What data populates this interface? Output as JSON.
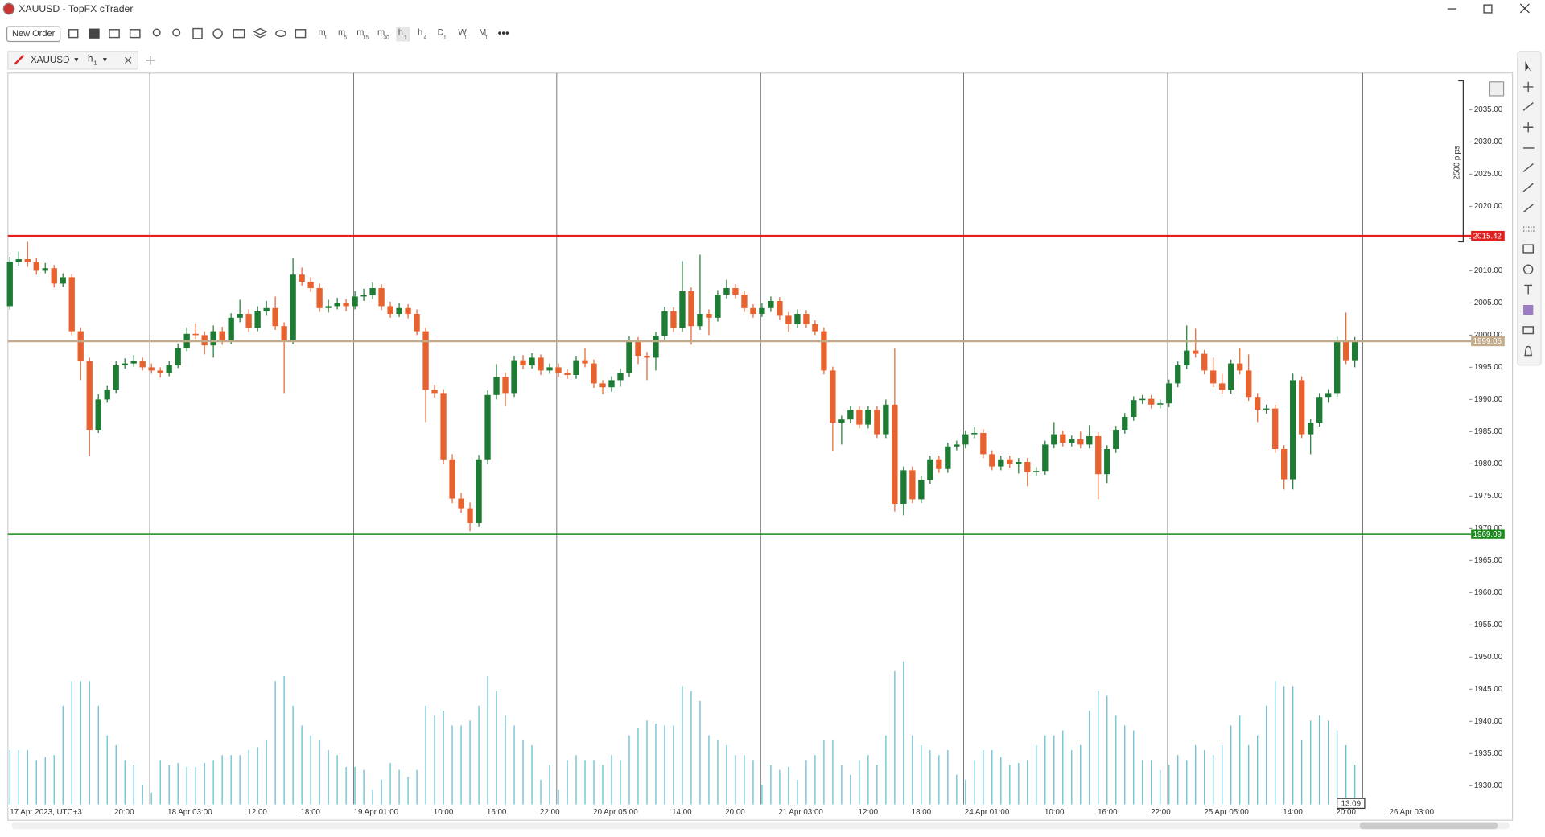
{
  "window": {
    "title": "XAUUSD - TopFX cTrader"
  },
  "toolbar": {
    "new_order": "New Order",
    "timeframes": [
      {
        "main": "m",
        "sub": "1"
      },
      {
        "main": "m",
        "sub": "5"
      },
      {
        "main": "m",
        "sub": "15"
      },
      {
        "main": "m",
        "sub": "30"
      },
      {
        "main": "h",
        "sub": "1"
      },
      {
        "main": "h",
        "sub": "4"
      },
      {
        "main": "D",
        "sub": "1"
      },
      {
        "main": "W",
        "sub": "1"
      },
      {
        "main": "M",
        "sub": "1"
      }
    ]
  },
  "tab": {
    "symbol": "XAUUSD",
    "timeframe": {
      "main": "h",
      "sub": "1"
    }
  },
  "chart_data": {
    "type": "candlestick",
    "up_color": "#1e7b34",
    "down_color": "#e8622f",
    "volume_color": "#5bbcd0",
    "ylim": [
      1927.1,
      2040.1
    ],
    "yticks": [
      {
        "value": 1930,
        "label": "1930.00"
      },
      {
        "value": 1935,
        "label": "1935.00"
      },
      {
        "value": 1940,
        "label": "1940.00"
      },
      {
        "value": 1945,
        "label": "1945.00"
      },
      {
        "value": 1950,
        "label": "1950.00"
      },
      {
        "value": 1955,
        "label": "1955.00"
      },
      {
        "value": 1960,
        "label": "1960.00"
      },
      {
        "value": 1965,
        "label": "1965.00"
      },
      {
        "value": 1970,
        "label": "1970.00"
      },
      {
        "value": 1975,
        "label": "1975.00"
      },
      {
        "value": 1980,
        "label": "1980.00"
      },
      {
        "value": 1985,
        "label": "1985.00"
      },
      {
        "value": 1990,
        "label": "1990.00"
      },
      {
        "value": 1995,
        "label": "1995.00"
      },
      {
        "value": 2000,
        "label": "2000.00"
      },
      {
        "value": 2005,
        "label": "2005.00"
      },
      {
        "value": 2010,
        "label": "2010.00"
      },
      {
        "value": 2015,
        "label": "2015.00"
      },
      {
        "value": 2020,
        "label": "2020.00"
      },
      {
        "value": 2025,
        "label": "2025.00"
      },
      {
        "value": 2030,
        "label": "2030.00"
      },
      {
        "value": 2035,
        "label": "2035.00"
      }
    ],
    "xticks": [
      "17 Apr 2023, UTC+3",
      "20:00",
      "18 Apr 03:00",
      "12:00",
      "18:00",
      "19 Apr 01:00",
      "10:00",
      "16:00",
      "22:00",
      "20 Apr 05:00",
      "14:00",
      "20:00",
      "21 Apr 03:00",
      "12:00",
      "18:00",
      "24 Apr 01:00",
      "10:00",
      "16:00",
      "22:00",
      "25 Apr 05:00",
      "14:00",
      "20:00",
      "26 Apr 03:00"
    ],
    "hlines": [
      {
        "value": 2015.42,
        "color": "#e01f1f"
      },
      {
        "value": 1999.05,
        "color": "#c2ab8a"
      },
      {
        "value": 1969.09,
        "color": "#1a8a1a"
      }
    ],
    "ruler_label": "2500 pips",
    "cursor_time": "13:09",
    "candles": [
      [
        2004.5,
        2012.2,
        2004.0,
        2011.4
      ],
      [
        2011.4,
        2013.0,
        2010.8,
        2011.8
      ],
      [
        2011.8,
        2014.5,
        2010.6,
        2011.3
      ],
      [
        2011.3,
        2012.0,
        2009.4,
        2010.0
      ],
      [
        2010.0,
        2011.2,
        2009.6,
        2010.4
      ],
      [
        2010.4,
        2010.9,
        2007.4,
        2008.0
      ],
      [
        2008.0,
        2009.6,
        2007.5,
        2009.0
      ],
      [
        2009.0,
        2009.5,
        2000.0,
        2000.6
      ],
      [
        2000.6,
        2001.2,
        1993.0,
        1996.0
      ],
      [
        1996.0,
        1996.5,
        1981.2,
        1985.3
      ],
      [
        1985.3,
        1990.8,
        1984.8,
        1990.0
      ],
      [
        1990.0,
        1992.2,
        1989.5,
        1991.5
      ],
      [
        1991.5,
        1996.0,
        1991.0,
        1995.3
      ],
      [
        1995.3,
        1996.4,
        1994.8,
        1995.6
      ],
      [
        1995.6,
        1996.9,
        1995.1,
        1996.0
      ],
      [
        1996.0,
        1996.5,
        1994.5,
        1995.0
      ],
      [
        1995.0,
        1995.6,
        1994.0,
        1994.5
      ],
      [
        1994.5,
        1995.0,
        1993.4,
        1994.1
      ],
      [
        1994.1,
        1996.0,
        1993.6,
        1995.3
      ],
      [
        1995.3,
        1998.7,
        1994.9,
        1998.0
      ],
      [
        1998.0,
        2001.2,
        1997.5,
        2000.2
      ],
      [
        2000.2,
        2001.8,
        1999.4,
        2000.0
      ],
      [
        2000.0,
        2000.6,
        1997.0,
        1998.4
      ],
      [
        1998.4,
        2001.5,
        1996.5,
        2000.6
      ],
      [
        2000.6,
        2001.3,
        1998.5,
        1999.1
      ],
      [
        1999.1,
        2003.4,
        1998.6,
        2002.7
      ],
      [
        2002.7,
        2005.5,
        2002.0,
        2003.3
      ],
      [
        2003.3,
        2004.0,
        2000.5,
        2001.1
      ],
      [
        2001.1,
        2004.5,
        2000.6,
        2003.7
      ],
      [
        2003.7,
        2005.3,
        2003.0,
        2004.2
      ],
      [
        2004.2,
        2006.0,
        2000.8,
        2001.4
      ],
      [
        2001.4,
        2002.0,
        1991.0,
        1999.1
      ],
      [
        1999.1,
        2012.0,
        1998.6,
        2009.4
      ],
      [
        2009.4,
        2010.5,
        2007.7,
        2008.3
      ],
      [
        2008.3,
        2009.0,
        2006.7,
        2007.3
      ],
      [
        2007.3,
        2008.0,
        2003.6,
        2004.2
      ],
      [
        2004.2,
        2005.5,
        2003.5,
        2004.5
      ],
      [
        2004.5,
        2005.8,
        2004.0,
        2005.0
      ],
      [
        2005.0,
        2005.6,
        2003.7,
        2004.5
      ],
      [
        2004.5,
        2006.8,
        2004.0,
        2006.0
      ],
      [
        2006.0,
        2007.2,
        2005.3,
        2006.2
      ],
      [
        2006.2,
        2008.2,
        2005.6,
        2007.3
      ],
      [
        2007.3,
        2007.9,
        2003.9,
        2004.5
      ],
      [
        2004.5,
        2005.2,
        2002.7,
        2003.3
      ],
      [
        2003.3,
        2005.0,
        2002.8,
        2004.2
      ],
      [
        2004.2,
        2004.8,
        2002.6,
        2003.3
      ],
      [
        2003.3,
        2004.0,
        2000.0,
        2000.6
      ],
      [
        2000.6,
        2001.2,
        1986.5,
        1991.5
      ],
      [
        1991.5,
        1992.3,
        1990.3,
        1991.0
      ],
      [
        1991.0,
        1991.6,
        1980.0,
        1980.7
      ],
      [
        1980.7,
        1981.5,
        1973.9,
        1974.6
      ],
      [
        1974.6,
        1975.5,
        1972.4,
        1973.1
      ],
      [
        1973.1,
        1974.0,
        1969.5,
        1970.8
      ],
      [
        1970.8,
        1981.4,
        1970.2,
        1980.7
      ],
      [
        1980.7,
        1991.4,
        1980.0,
        1990.7
      ],
      [
        1990.7,
        1995.5,
        1990.0,
        1993.5
      ],
      [
        1993.5,
        1994.2,
        1989.0,
        1991.0
      ],
      [
        1991.0,
        1996.8,
        1990.4,
        1996.1
      ],
      [
        1996.1,
        1996.9,
        1994.7,
        1995.3
      ],
      [
        1995.3,
        1997.2,
        1994.8,
        1996.5
      ],
      [
        1996.5,
        1997.0,
        1993.8,
        1994.5
      ],
      [
        1994.5,
        1995.6,
        1994.0,
        1995.0
      ],
      [
        1995.0,
        1995.6,
        1993.5,
        1994.1
      ],
      [
        1994.1,
        1994.7,
        1993.2,
        1993.8
      ],
      [
        1993.8,
        1996.8,
        1993.2,
        1996.1
      ],
      [
        1996.1,
        1998.0,
        1995.0,
        1995.6
      ],
      [
        1995.6,
        1996.2,
        1991.8,
        1992.5
      ],
      [
        1992.5,
        1993.0,
        1990.8,
        1991.9
      ],
      [
        1991.9,
        1993.6,
        1991.2,
        1993.0
      ],
      [
        1993.0,
        1994.8,
        1992.0,
        1994.1
      ],
      [
        1994.1,
        1999.8,
        1993.5,
        1999.1
      ],
      [
        1999.1,
        1999.7,
        1995.5,
        1996.8
      ],
      [
        1996.8,
        1997.4,
        1993.0,
        1996.5
      ],
      [
        1996.5,
        2000.5,
        1994.5,
        1999.9
      ],
      [
        1999.9,
        2004.4,
        1999.3,
        2003.7
      ],
      [
        2003.7,
        2004.3,
        2000.5,
        2001.1
      ],
      [
        2001.1,
        2011.5,
        2000.5,
        2006.8
      ],
      [
        2006.8,
        2007.4,
        1998.5,
        2001.4
      ],
      [
        2001.4,
        2012.5,
        2000.8,
        2003.3
      ],
      [
        2003.3,
        2004.0,
        2000.0,
        2002.7
      ],
      [
        2002.7,
        2007.0,
        2002.1,
        2006.3
      ],
      [
        2006.3,
        2008.6,
        2005.7,
        2007.3
      ],
      [
        2007.3,
        2007.9,
        2005.7,
        2006.3
      ],
      [
        2006.3,
        2006.9,
        2003.6,
        2004.2
      ],
      [
        2004.2,
        2004.8,
        2002.7,
        2003.3
      ],
      [
        2003.3,
        2005.0,
        2002.8,
        2004.2
      ],
      [
        2004.2,
        2006.0,
        2003.6,
        2005.3
      ],
      [
        2005.3,
        2005.9,
        2002.4,
        2003.0
      ],
      [
        2003.0,
        2003.6,
        2000.5,
        2001.7
      ],
      [
        2001.7,
        2004.0,
        2001.1,
        2003.3
      ],
      [
        2003.3,
        2003.9,
        2001.1,
        2001.7
      ],
      [
        2001.7,
        2002.3,
        2000.0,
        2000.6
      ],
      [
        2000.6,
        2001.2,
        1993.9,
        1994.5
      ],
      [
        1994.5,
        1995.1,
        1982.0,
        1986.4
      ],
      [
        1986.4,
        1987.5,
        1983.0,
        1986.9
      ],
      [
        1986.9,
        1989.0,
        1986.3,
        1988.4
      ],
      [
        1988.4,
        1989.0,
        1985.5,
        1986.1
      ],
      [
        1986.1,
        1989.0,
        1985.5,
        1988.4
      ],
      [
        1988.4,
        1989.0,
        1984.0,
        1984.6
      ],
      [
        1984.6,
        1990.0,
        1984.0,
        1989.2
      ],
      [
        1989.2,
        1998.0,
        1972.6,
        1973.8
      ],
      [
        1973.8,
        1979.6,
        1972.0,
        1979.0
      ],
      [
        1979.0,
        1979.6,
        1973.9,
        1974.5
      ],
      [
        1974.5,
        1978.1,
        1973.9,
        1977.5
      ],
      [
        1977.5,
        1981.3,
        1976.9,
        1980.7
      ],
      [
        1980.7,
        1981.3,
        1978.6,
        1979.2
      ],
      [
        1979.2,
        1983.3,
        1978.6,
        1982.7
      ],
      [
        1982.7,
        1983.6,
        1982.1,
        1983.0
      ],
      [
        1983.0,
        1985.2,
        1982.4,
        1984.6
      ],
      [
        1984.6,
        1985.7,
        1984.0,
        1984.8
      ],
      [
        1984.8,
        1985.4,
        1980.9,
        1981.5
      ],
      [
        1981.5,
        1982.1,
        1979.0,
        1979.6
      ],
      [
        1979.6,
        1981.3,
        1979.0,
        1980.7
      ],
      [
        1980.7,
        1981.3,
        1979.4,
        1980.0
      ],
      [
        1980.0,
        1980.9,
        1978.5,
        1980.3
      ],
      [
        1980.3,
        1980.9,
        1976.5,
        1978.7
      ],
      [
        1978.7,
        1979.5,
        1978.1,
        1978.9
      ],
      [
        1978.9,
        1983.6,
        1978.3,
        1983.0
      ],
      [
        1983.0,
        1986.5,
        1982.4,
        1984.6
      ],
      [
        1984.6,
        1985.2,
        1982.7,
        1983.3
      ],
      [
        1983.3,
        1984.4,
        1982.7,
        1983.8
      ],
      [
        1983.8,
        1985.0,
        1982.4,
        1983.0
      ],
      [
        1983.0,
        1986.0,
        1982.4,
        1984.3
      ],
      [
        1984.3,
        1984.9,
        1974.5,
        1978.4
      ],
      [
        1978.4,
        1982.9,
        1977.0,
        1982.3
      ],
      [
        1982.3,
        1985.9,
        1981.7,
        1985.3
      ],
      [
        1985.3,
        1987.9,
        1984.7,
        1987.3
      ],
      [
        1987.3,
        1990.5,
        1986.7,
        1989.9
      ],
      [
        1989.9,
        1990.7,
        1989.3,
        1990.1
      ],
      [
        1990.1,
        1990.7,
        1988.6,
        1989.2
      ],
      [
        1989.2,
        1990.0,
        1988.6,
        1989.4
      ],
      [
        1989.4,
        1993.1,
        1988.8,
        1992.5
      ],
      [
        1992.5,
        1995.9,
        1991.9,
        1995.3
      ],
      [
        1995.3,
        2001.5,
        1994.7,
        1997.6
      ],
      [
        1997.6,
        2001.0,
        1996.5,
        1997.1
      ],
      [
        1997.1,
        1997.7,
        1993.9,
        1994.5
      ],
      [
        1994.5,
        1996.5,
        1991.9,
        1992.5
      ],
      [
        1992.5,
        1994.0,
        1990.9,
        1991.5
      ],
      [
        1991.5,
        1996.2,
        1990.9,
        1995.6
      ],
      [
        1995.6,
        1998.0,
        1993.9,
        1994.5
      ],
      [
        1994.5,
        1997.0,
        1989.8,
        1990.4
      ],
      [
        1990.4,
        1991.0,
        1986.5,
        1988.4
      ],
      [
        1988.4,
        1989.2,
        1987.8,
        1988.6
      ],
      [
        1988.6,
        1989.2,
        1981.7,
        1982.3
      ],
      [
        1982.3,
        1982.9,
        1976.0,
        1977.6
      ],
      [
        1977.6,
        1994.0,
        1976.0,
        1993.0
      ],
      [
        1993.0,
        1993.6,
        1984.0,
        1984.6
      ],
      [
        1984.6,
        1987.0,
        1981.5,
        1986.4
      ],
      [
        1986.4,
        1991.0,
        1985.8,
        1990.4
      ],
      [
        1990.4,
        1991.6,
        1989.5,
        1991.0
      ],
      [
        1991.0,
        1999.7,
        1990.4,
        1999.1
      ],
      [
        1999.1,
        2003.5,
        1995.5,
        1996.1
      ],
      [
        1996.1,
        1999.7,
        1995.0,
        1999.1
      ]
    ],
    "volumes": [
      55,
      55,
      55,
      45,
      48,
      50,
      100,
      125,
      125,
      125,
      100,
      70,
      60,
      45,
      40,
      20,
      12,
      45,
      40,
      42,
      38,
      38,
      42,
      45,
      50,
      50,
      50,
      55,
      58,
      65,
      125,
      130,
      100,
      80,
      70,
      65,
      55,
      50,
      38,
      38,
      35,
      15,
      25,
      42,
      35,
      28,
      35,
      100,
      90,
      95,
      80,
      80,
      85,
      100,
      130,
      115,
      90,
      80,
      65,
      60,
      25,
      40,
      15,
      45,
      50,
      45,
      45,
      40,
      50,
      45,
      70,
      78,
      85,
      82,
      80,
      80,
      120,
      115,
      105,
      70,
      65,
      60,
      50,
      50,
      45,
      20,
      40,
      35,
      38,
      25,
      45,
      50,
      65,
      65,
      40,
      30,
      45,
      50,
      40,
      70,
      135,
      145,
      70,
      60,
      55,
      50,
      55,
      30,
      25,
      45,
      55,
      55,
      48,
      40,
      42,
      45,
      60,
      70,
      70,
      75,
      55,
      60,
      95,
      115,
      110,
      90,
      80,
      75,
      45,
      45,
      35,
      40,
      50,
      45,
      60,
      55,
      50,
      60,
      80,
      90,
      60,
      70,
      100,
      125,
      120,
      120,
      65,
      85,
      90,
      85,
      75,
      60,
      40
    ]
  }
}
